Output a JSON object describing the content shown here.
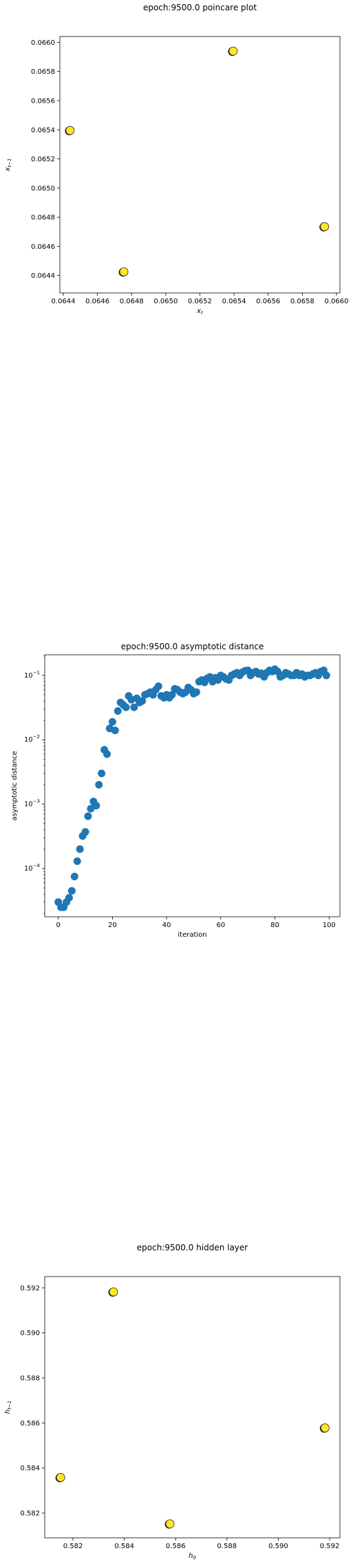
{
  "chart_data": [
    {
      "type": "scatter",
      "title": "epoch:9500.0 poincare plot",
      "xlabel": "x_t",
      "ylabel": "x_{t-1}",
      "xlim": [
        0.06438,
        0.06602
      ],
      "ylim": [
        0.06428,
        0.06604
      ],
      "xticks": [
        0.0644,
        0.0646,
        0.0648,
        0.065,
        0.0652,
        0.0654,
        0.0656,
        0.0658,
        0.066
      ],
      "xtick_labels": [
        "0.0644",
        "0.0646",
        "0.0648",
        "0.0650",
        "0.0652",
        "0.0654",
        "0.0656",
        "0.0658",
        "0.0660"
      ],
      "yticks": [
        0.0644,
        0.0646,
        0.0648,
        0.065,
        0.0652,
        0.0654,
        0.0656,
        0.0658,
        0.066
      ],
      "ytick_labels": [
        "0.0644",
        "0.0646",
        "0.0648",
        "0.0650",
        "0.0652",
        "0.0654",
        "0.0656",
        "0.0658",
        "0.0660"
      ],
      "point_fill": "#fde725",
      "point_edge": "#222222",
      "points": [
        {
          "x": 0.06593,
          "y": 0.064735
        },
        {
          "x": 0.064755,
          "y": 0.064425
        },
        {
          "x": 0.06444,
          "y": 0.065395
        },
        {
          "x": 0.065395,
          "y": 0.06594
        }
      ]
    },
    {
      "type": "scatter",
      "title": "epoch:9500.0 asymptotic distance",
      "xlabel": "iteration",
      "ylabel": "asymptotic distance",
      "yscale": "log",
      "xlim": [
        -5,
        104
      ],
      "ylim_log10": [
        -4.75,
        -0.68
      ],
      "xticks": [
        0,
        20,
        40,
        60,
        80,
        100
      ],
      "xtick_labels": [
        "0",
        "20",
        "40",
        "60",
        "80",
        "100"
      ],
      "ytick_exponents": [
        -4,
        -3,
        -2,
        -1
      ],
      "ytick_base": "10",
      "marker_color": "#1f77b4",
      "x": [
        0,
        1,
        2,
        3,
        4,
        5,
        6,
        7,
        8,
        9,
        10,
        11,
        12,
        13,
        14,
        15,
        16,
        17,
        18,
        19,
        20,
        21,
        22,
        23,
        24,
        25,
        26,
        27,
        28,
        29,
        30,
        31,
        32,
        33,
        34,
        35,
        36,
        37,
        38,
        39,
        40,
        41,
        42,
        43,
        44,
        45,
        46,
        47,
        48,
        49,
        50,
        51,
        52,
        53,
        54,
        55,
        56,
        57,
        58,
        59,
        60,
        61,
        62,
        63,
        64,
        65,
        66,
        67,
        68,
        69,
        70,
        71,
        72,
        73,
        74,
        75,
        76,
        77,
        78,
        79,
        80,
        81,
        82,
        83,
        84,
        85,
        86,
        87,
        88,
        89,
        90,
        91,
        92,
        93,
        94,
        95,
        96,
        97,
        98,
        99
      ],
      "y": [
        3e-05,
        2.5e-05,
        2.5e-05,
        3e-05,
        3.5e-05,
        4.5e-05,
        7.5e-05,
        0.00013,
        0.0002,
        0.00032,
        0.00037,
        0.00065,
        0.00085,
        0.0011,
        0.00095,
        0.002,
        0.003,
        0.007,
        0.006,
        0.015,
        0.019,
        0.014,
        0.028,
        0.038,
        0.035,
        0.032,
        0.048,
        0.042,
        0.032,
        0.044,
        0.038,
        0.04,
        0.05,
        0.052,
        0.055,
        0.05,
        0.06,
        0.068,
        0.048,
        0.045,
        0.05,
        0.045,
        0.05,
        0.062,
        0.06,
        0.055,
        0.052,
        0.055,
        0.065,
        0.06,
        0.052,
        0.055,
        0.08,
        0.085,
        0.078,
        0.09,
        0.095,
        0.08,
        0.092,
        0.085,
        0.1,
        0.095,
        0.088,
        0.085,
        0.1,
        0.105,
        0.11,
        0.1,
        0.112,
        0.118,
        0.12,
        0.1,
        0.11,
        0.115,
        0.105,
        0.108,
        0.095,
        0.11,
        0.12,
        0.115,
        0.125,
        0.115,
        0.095,
        0.1,
        0.11,
        0.105,
        0.1,
        0.1,
        0.11,
        0.1,
        0.105,
        0.095,
        0.1,
        0.1,
        0.105,
        0.11,
        0.1,
        0.115,
        0.12,
        0.1
      ]
    },
    {
      "type": "scatter",
      "title": "epoch:9500.0 hidden layer",
      "xlabel": "h_0",
      "ylabel": "h_{t-1}",
      "xlim": [
        0.5809,
        0.5924
      ],
      "ylim": [
        0.5809,
        0.5925
      ],
      "xticks": [
        0.582,
        0.584,
        0.586,
        0.588,
        0.59,
        0.592
      ],
      "xtick_labels": [
        "0.582",
        "0.584",
        "0.586",
        "0.588",
        "0.590",
        "0.592"
      ],
      "yticks": [
        0.582,
        0.584,
        0.586,
        0.588,
        0.59,
        0.592
      ],
      "ytick_labels": [
        "0.582",
        "0.584",
        "0.586",
        "0.588",
        "0.590",
        "0.592"
      ],
      "point_fill": "#fde725",
      "point_edge": "#222222",
      "points": [
        {
          "x": 0.58358,
          "y": 0.59182
        },
        {
          "x": 0.59182,
          "y": 0.58578
        },
        {
          "x": 0.58578,
          "y": 0.58152
        },
        {
          "x": 0.58152,
          "y": 0.58358
        }
      ]
    }
  ]
}
